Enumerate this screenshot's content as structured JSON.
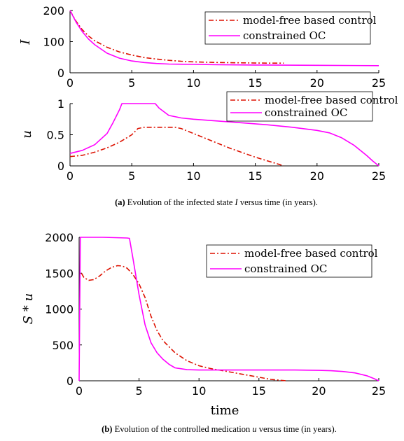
{
  "chart_data": [
    {
      "type": "line",
      "ylabel": "I",
      "xlabel": "",
      "xlim": [
        0,
        25
      ],
      "ylim": [
        0,
        200
      ],
      "xticks": [
        "0",
        "5",
        "10",
        "15",
        "20",
        "25"
      ],
      "yticks": [
        "0",
        "100",
        "200"
      ],
      "legend_position": "top-right",
      "series": [
        {
          "name": "model-free based control",
          "color": "#dd1100",
          "style": "dashdot",
          "x": [
            0,
            0.5,
            1,
            1.5,
            2,
            3,
            4,
            5,
            6,
            7,
            8,
            9,
            10,
            12,
            14,
            16,
            17.3
          ],
          "y": [
            200,
            165,
            138,
            118,
            103,
            82,
            67,
            57,
            49,
            44,
            40,
            37,
            35,
            33,
            32,
            31,
            31
          ]
        },
        {
          "name": "constrained OC",
          "color": "#ff00ff",
          "style": "solid",
          "x": [
            0,
            0.5,
            1,
            1.5,
            2,
            3,
            4,
            5,
            6,
            7,
            8,
            10,
            12,
            15,
            20,
            25
          ],
          "y": [
            200,
            162,
            132,
            108,
            90,
            63,
            47,
            38,
            33,
            30,
            28,
            27,
            26,
            25,
            24,
            23
          ]
        }
      ]
    },
    {
      "type": "line",
      "ylabel": "u",
      "xlabel": "",
      "xlim": [
        0,
        25
      ],
      "ylim": [
        0,
        1
      ],
      "xticks": [
        "0",
        "5",
        "10",
        "15",
        "20",
        "25"
      ],
      "yticks": [
        "0",
        "0.5",
        "1"
      ],
      "legend_position": "top-right",
      "series": [
        {
          "name": "model-free based control",
          "color": "#dd1100",
          "style": "dashdot",
          "x": [
            0,
            1,
            2,
            3,
            4,
            5,
            5.5,
            6,
            7,
            8,
            8.5,
            9,
            10,
            11,
            12,
            13,
            14,
            15,
            16,
            17,
            17.3
          ],
          "y": [
            0.15,
            0.17,
            0.22,
            0.29,
            0.38,
            0.5,
            0.6,
            0.62,
            0.62,
            0.62,
            0.62,
            0.6,
            0.52,
            0.44,
            0.36,
            0.28,
            0.21,
            0.14,
            0.08,
            0.02,
            0
          ]
        },
        {
          "name": "constrained OC",
          "color": "#ff00ff",
          "style": "solid",
          "x": [
            0,
            1,
            2,
            3,
            3.5,
            4,
            4.2,
            6.9,
            7.2,
            8,
            9,
            10,
            12,
            14,
            16,
            18,
            20,
            21,
            22,
            23,
            24,
            24.5,
            25
          ],
          "y": [
            0.2,
            0.25,
            0.34,
            0.52,
            0.7,
            0.9,
            1,
            1,
            0.93,
            0.81,
            0.77,
            0.75,
            0.72,
            0.69,
            0.66,
            0.62,
            0.57,
            0.53,
            0.45,
            0.33,
            0.17,
            0.08,
            0
          ]
        }
      ]
    },
    {
      "type": "line",
      "ylabel": "S * u",
      "xlabel": "time",
      "xlim": [
        0,
        25
      ],
      "ylim": [
        0,
        2000
      ],
      "xticks": [
        "0",
        "5",
        "10",
        "15",
        "20",
        "25"
      ],
      "yticks": [
        "0",
        "500",
        "1000",
        "1500",
        "2000"
      ],
      "legend_position": "top-right",
      "series": [
        {
          "name": "model-free based control",
          "color": "#dd1100",
          "style": "dashdot",
          "x": [
            0.2,
            0.4,
            0.8,
            1.2,
            1.7,
            2.2,
            2.7,
            3.2,
            3.6,
            4.0,
            4.5,
            5.0,
            5.5,
            6.0,
            6.5,
            7.0,
            8.0,
            9.0,
            10.0,
            11.0,
            12.0,
            13.0,
            14.0,
            15.0,
            16.0,
            17.3
          ],
          "y": [
            1500,
            1440,
            1400,
            1410,
            1460,
            1530,
            1580,
            1605,
            1600,
            1570,
            1480,
            1350,
            1160,
            900,
            700,
            560,
            390,
            280,
            210,
            170,
            140,
            110,
            80,
            50,
            20,
            0
          ]
        },
        {
          "name": "constrained OC",
          "color": "#ff00ff",
          "style": "solid",
          "x": [
            0,
            0.1,
            0.2,
            1,
            2,
            3,
            4,
            4.2,
            4.5,
            5,
            5.5,
            6,
            6.5,
            7,
            7.5,
            8,
            9,
            10,
            12,
            15,
            18,
            20,
            21,
            22,
            23,
            24,
            24.6,
            25
          ],
          "y": [
            0,
            2000,
            2000,
            2000,
            2000,
            1995,
            1990,
            1985,
            1700,
            1200,
            780,
            530,
            390,
            300,
            230,
            180,
            155,
            150,
            150,
            150,
            150,
            145,
            140,
            130,
            110,
            70,
            30,
            0
          ]
        }
      ]
    }
  ],
  "captions": {
    "a": {
      "label": "(a)",
      "part1": " Evolution of the infected state ",
      "var": "I",
      "part2": " versus time (in years)."
    },
    "b": {
      "label": "(b)",
      "part1": " Evolution of the controlled medication ",
      "var": "u",
      "part2": " versus time (in years)."
    }
  }
}
